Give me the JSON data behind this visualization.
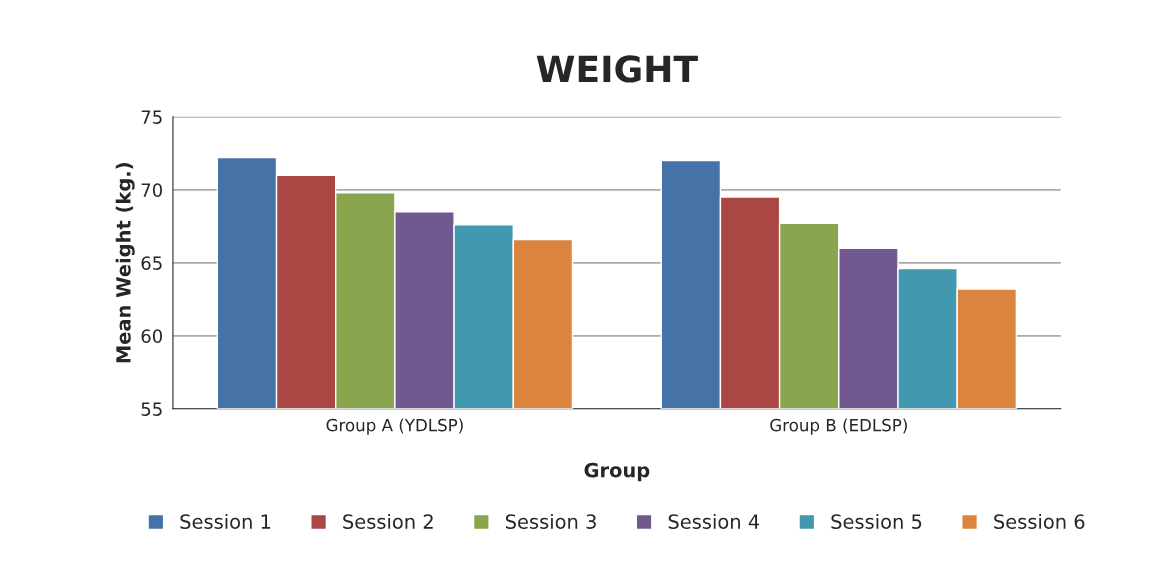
{
  "chart_data": {
    "type": "bar",
    "title": "WEIGHT",
    "xlabel": "Group",
    "ylabel": "Mean Weight (kg.)",
    "categories": [
      "Group A (YDLSP)",
      "Group B (EDLSP)"
    ],
    "series": [
      {
        "name": "Session 1",
        "color": "#4572a7",
        "values": [
          72.2,
          72.0
        ]
      },
      {
        "name": "Session 2",
        "color": "#aa4643",
        "values": [
          71.0,
          69.5
        ]
      },
      {
        "name": "Session 3",
        "color": "#89a54e",
        "values": [
          69.8,
          67.7
        ]
      },
      {
        "name": "Session 4",
        "color": "#71588f",
        "values": [
          68.5,
          66.0
        ]
      },
      {
        "name": "Session 5",
        "color": "#4198af",
        "values": [
          67.6,
          64.6
        ]
      },
      {
        "name": "Session 6",
        "color": "#db843d",
        "values": [
          66.6,
          63.2
        ]
      }
    ],
    "ylim": [
      55,
      75
    ],
    "yticks": [
      55,
      60,
      65,
      70,
      75
    ],
    "grid": "y",
    "legend": "bottom"
  }
}
